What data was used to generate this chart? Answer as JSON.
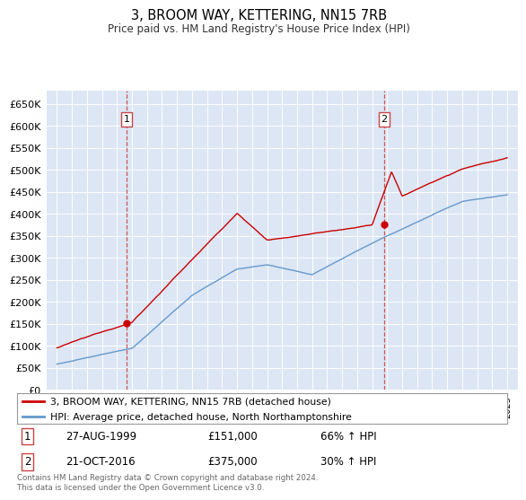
{
  "title": "3, BROOM WAY, KETTERING, NN15 7RB",
  "subtitle": "Price paid vs. HM Land Registry's House Price Index (HPI)",
  "background_color": "#dce6f5",
  "plot_bg_color": "#dce6f5",
  "red_line_label": "3, BROOM WAY, KETTERING, NN15 7RB (detached house)",
  "blue_line_label": "HPI: Average price, detached house, North Northamptonshire",
  "sale1_date": "27-AUG-1999",
  "sale1_price": 151000,
  "sale1_hpi": "66% ↑ HPI",
  "sale2_date": "21-OCT-2016",
  "sale2_price": 375000,
  "sale2_hpi": "30% ↑ HPI",
  "footer": "Contains HM Land Registry data © Crown copyright and database right 2024.\nThis data is licensed under the Open Government Licence v3.0.",
  "ylim": [
    0,
    680000
  ],
  "yticks": [
    0,
    50000,
    100000,
    150000,
    200000,
    250000,
    300000,
    350000,
    400000,
    450000,
    500000,
    550000,
    600000,
    650000
  ],
  "red_color": "#cc0000",
  "blue_color": "#6699cc",
  "dashed_color": "#cc4444",
  "sale1_x": 1999.65,
  "sale2_x": 2016.8,
  "xlim_left": 1994.3,
  "xlim_right": 2025.7
}
